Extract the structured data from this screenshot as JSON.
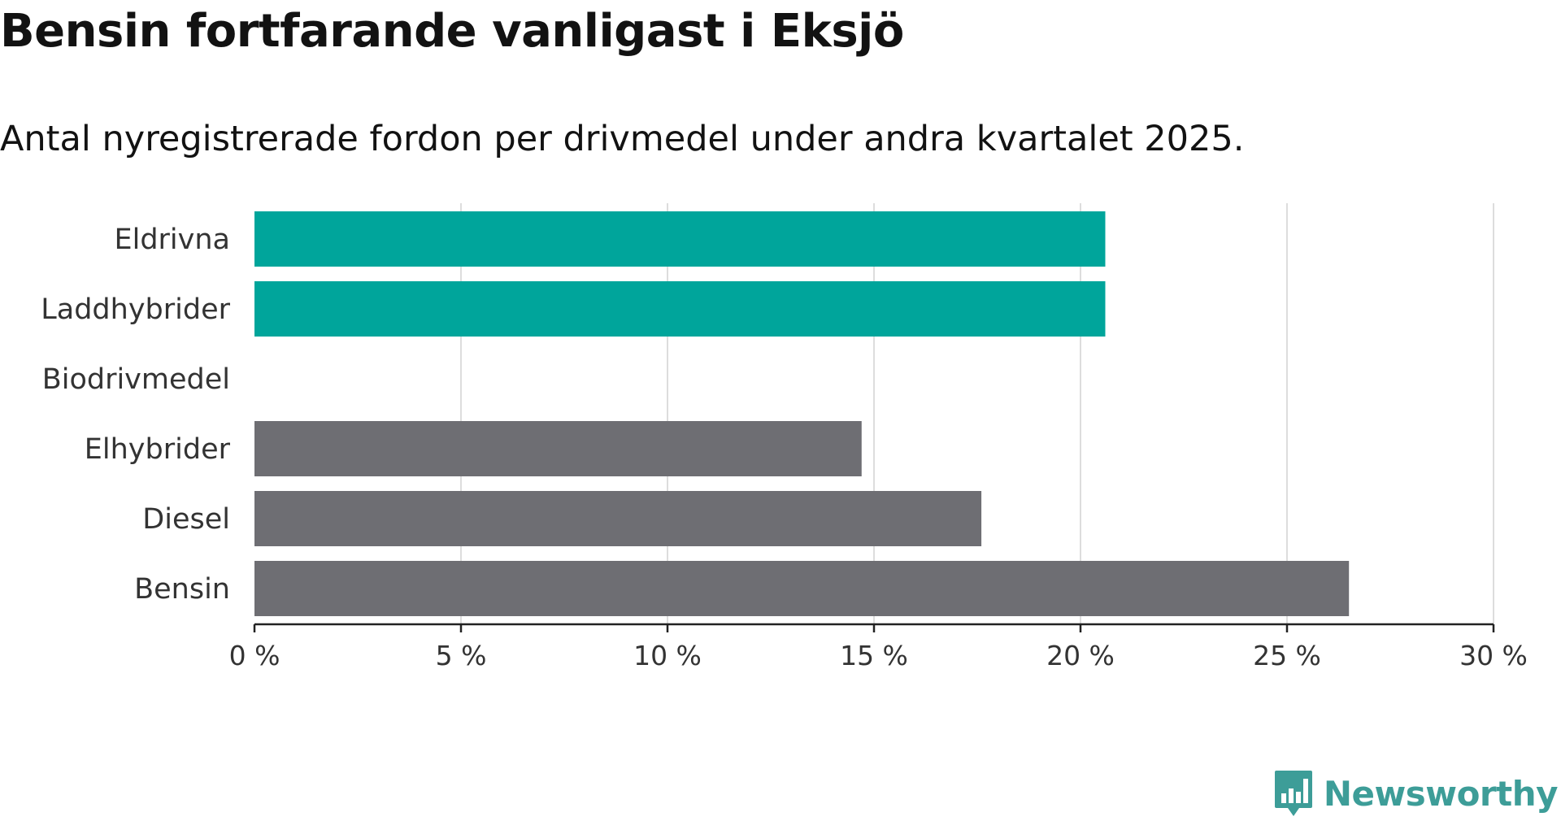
{
  "title": "Bensin fortfarande vanligast i Eksjö",
  "subtitle": "Antal nyregistrerade fordon per drivmedel under andra kvartalet 2025.",
  "brand": {
    "name": "Newsworthy",
    "icon": "newsworthy-logo-icon",
    "color": "#3d9d98"
  },
  "colors": {
    "highlight": "#00a59b",
    "default": "#6e6e73",
    "grid": "#dddddd",
    "axis": "#222222"
  },
  "chart_data": {
    "type": "bar",
    "orientation": "horizontal",
    "categories": [
      "Eldrivna",
      "Laddhybrider",
      "Biodrivmedel",
      "Elhybrider",
      "Diesel",
      "Bensin"
    ],
    "values": [
      20.6,
      20.6,
      0,
      14.7,
      17.6,
      26.5
    ],
    "highlighted": [
      true,
      true,
      false,
      false,
      false,
      false
    ],
    "xlim": [
      0,
      30
    ],
    "ticks": [
      0,
      5,
      10,
      15,
      20,
      25,
      30
    ],
    "tick_labels": [
      "0 %",
      "5 %",
      "10 %",
      "15 %",
      "20 %",
      "25 %",
      "30 %"
    ],
    "grid": true
  }
}
